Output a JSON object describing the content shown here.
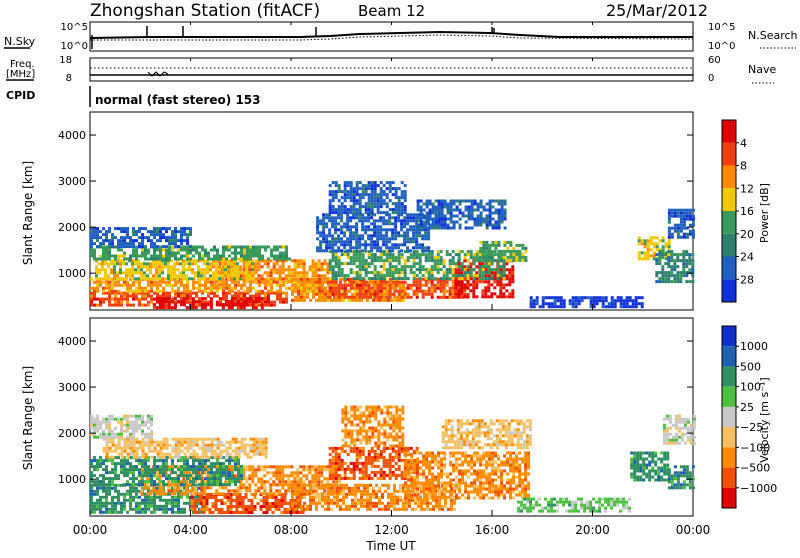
{
  "header": {
    "station": "Zhongshan Station (fitACF)",
    "beam": "Beam 12",
    "date": "25/Mar/2012"
  },
  "noise_panel": {
    "left_label": "N.Sky",
    "right_label": "N.Search",
    "left_ticks": [
      "10^5",
      "10^0"
    ],
    "right_ticks": [
      "10^5",
      "10^0"
    ]
  },
  "freq_panel": {
    "left_label_1": "Freq.",
    "left_label_2": "[MHz]",
    "right_label": "Nave",
    "left_ticks": [
      "18",
      "8"
    ],
    "right_ticks": [
      "60",
      "0"
    ]
  },
  "cpid_panel": {
    "label": "CPID",
    "mode": "normal (fast stereo) 153"
  },
  "x_axis": {
    "label": "Time UT",
    "ticks": [
      "00:00",
      "04:00",
      "08:00",
      "12:00",
      "16:00",
      "20:00",
      "00:00"
    ]
  },
  "colors": {
    "power": [
      "#1030d8",
      "#1f5fbf",
      "#2f7f6f",
      "#3a9a5a",
      "#f0c800",
      "#ff8c00",
      "#f04010",
      "#e00000"
    ],
    "velocity": [
      "#e00000",
      "#f05000",
      "#ff8c00",
      "#f4c060",
      "#c8c8c8",
      "#4cc040",
      "#2f8f60",
      "#2060b0",
      "#1030c8"
    ]
  },
  "chart_data": [
    {
      "type": "heatmap",
      "title": "",
      "quantity": "Power",
      "ylabel": "Slant Range [km]",
      "xlabel": "",
      "ylim": [
        200,
        4500
      ],
      "yticks": [
        "1000",
        "2000",
        "3000",
        "4000"
      ],
      "colorbar": {
        "label": "Power [dB]",
        "ticks": [
          "4",
          "8",
          "12",
          "16",
          "20",
          "24",
          "28"
        ]
      },
      "x_hours_range": [
        0,
        24
      ],
      "regions": [
        {
          "t0": 0.0,
          "t1": 7.8,
          "r0": 280,
          "r1": 600,
          "level": 6
        },
        {
          "t0": 2.5,
          "t1": 7.0,
          "r0": 280,
          "r1": 480,
          "level": 7
        },
        {
          "t0": 0.0,
          "t1": 9.5,
          "r0": 600,
          "r1": 900,
          "level": 5
        },
        {
          "t0": 5.0,
          "t1": 9.5,
          "r0": 800,
          "r1": 1300,
          "level": 5
        },
        {
          "t0": 0.2,
          "t1": 6.5,
          "r0": 900,
          "r1": 1300,
          "level": 4
        },
        {
          "t0": 0.0,
          "t1": 8.0,
          "r0": 1300,
          "r1": 1600,
          "level": 3
        },
        {
          "t0": 0.0,
          "t1": 4.0,
          "r0": 1600,
          "r1": 2000,
          "level": 1
        },
        {
          "t0": 8.0,
          "t1": 12.5,
          "r0": 400,
          "r1": 900,
          "level": 5
        },
        {
          "t0": 9.5,
          "t1": 15.0,
          "r0": 450,
          "r1": 900,
          "level": 6
        },
        {
          "t0": 14.5,
          "t1": 16.8,
          "r0": 500,
          "r1": 1300,
          "level": 7
        },
        {
          "t0": 15.5,
          "t1": 17.3,
          "r0": 1300,
          "r1": 1700,
          "level": 3
        },
        {
          "t0": 9.5,
          "t1": 16.5,
          "r0": 900,
          "r1": 1500,
          "level": 3
        },
        {
          "t0": 9.0,
          "t1": 13.5,
          "r0": 1500,
          "r1": 2300,
          "level": 1
        },
        {
          "t0": 9.5,
          "t1": 12.5,
          "r0": 2300,
          "r1": 3000,
          "level": 1
        },
        {
          "t0": 13.0,
          "t1": 16.5,
          "r0": 2000,
          "r1": 2600,
          "level": 1
        },
        {
          "t0": 17.5,
          "t1": 22.0,
          "r0": 300,
          "r1": 500,
          "level": 0
        },
        {
          "t0": 21.8,
          "t1": 23.0,
          "r0": 1300,
          "r1": 1800,
          "level": 4
        },
        {
          "t0": 22.5,
          "t1": 24.0,
          "r0": 800,
          "r1": 1500,
          "level": 2
        },
        {
          "t0": 23.0,
          "t1": 24.0,
          "r0": 1800,
          "r1": 2400,
          "level": 1
        }
      ]
    },
    {
      "type": "heatmap",
      "title": "",
      "quantity": "Velocity",
      "ylabel": "Slant Range [km]",
      "xlabel": "Time UT",
      "ylim": [
        200,
        4500
      ],
      "yticks": [
        "1000",
        "2000",
        "3000",
        "4000"
      ],
      "colorbar": {
        "label": "Velocity [m s⁻¹]",
        "ticks": [
          "1000",
          "500",
          "100",
          "25",
          "−25",
          "−100",
          "−500",
          "−1000"
        ]
      },
      "x_hours_range": [
        0,
        24
      ],
      "regions": [
        {
          "t0": 0.0,
          "t1": 4.5,
          "r0": 280,
          "r1": 900,
          "level": 6
        },
        {
          "t0": 4.0,
          "t1": 8.5,
          "r0": 280,
          "r1": 700,
          "level": 1
        },
        {
          "t0": 2.0,
          "t1": 10.0,
          "r0": 700,
          "r1": 1300,
          "level": 2
        },
        {
          "t0": 0.0,
          "t1": 6.0,
          "r0": 900,
          "r1": 1500,
          "level": 6
        },
        {
          "t0": 0.5,
          "t1": 7.0,
          "r0": 1500,
          "r1": 1900,
          "level": 3
        },
        {
          "t0": 0.0,
          "t1": 2.5,
          "r0": 1900,
          "r1": 2400,
          "level": 4
        },
        {
          "t0": 8.0,
          "t1": 14.5,
          "r0": 350,
          "r1": 900,
          "level": 2
        },
        {
          "t0": 9.5,
          "t1": 13.0,
          "r0": 1000,
          "r1": 1700,
          "level": 1
        },
        {
          "t0": 10.0,
          "t1": 12.5,
          "r0": 1700,
          "r1": 2600,
          "level": 2
        },
        {
          "t0": 12.5,
          "t1": 17.5,
          "r0": 600,
          "r1": 1600,
          "level": 2
        },
        {
          "t0": 14.0,
          "t1": 17.5,
          "r0": 1700,
          "r1": 2300,
          "level": 3
        },
        {
          "t0": 17.0,
          "t1": 21.5,
          "r0": 300,
          "r1": 600,
          "level": 5
        },
        {
          "t0": 21.5,
          "t1": 23.0,
          "r0": 1000,
          "r1": 1600,
          "level": 6
        },
        {
          "t0": 23.0,
          "t1": 24.0,
          "r0": 800,
          "r1": 1300,
          "level": 6
        },
        {
          "t0": 22.8,
          "t1": 24.0,
          "r0": 1800,
          "r1": 2400,
          "level": 4
        }
      ]
    }
  ]
}
